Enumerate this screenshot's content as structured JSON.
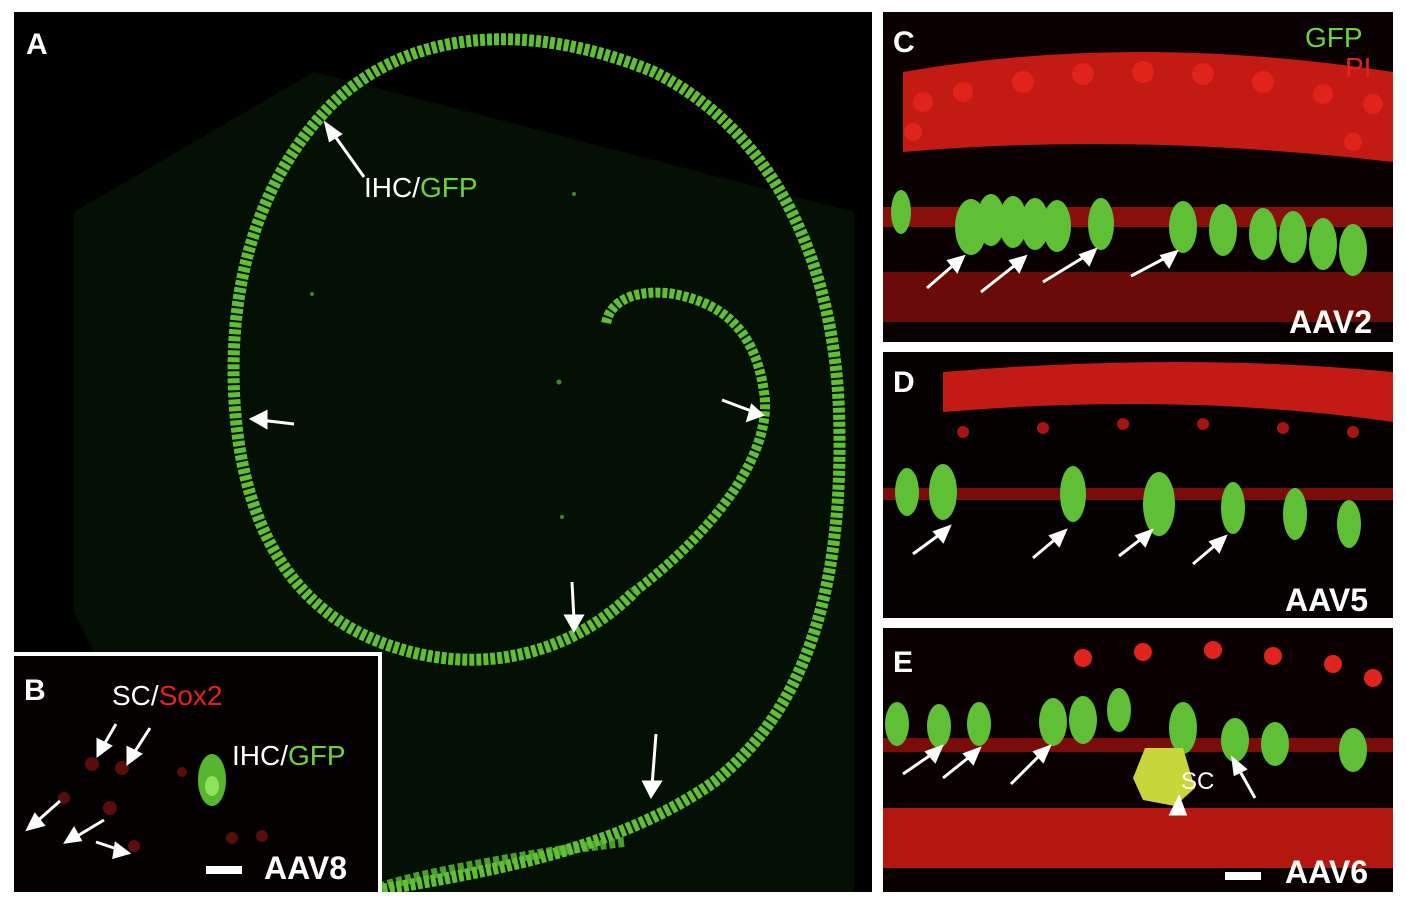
{
  "panels": {
    "a": {
      "label": "A",
      "annotation": {
        "part1": "IHC/",
        "part2": "GFP"
      }
    },
    "b": {
      "label": "B",
      "annotation_top": {
        "part1": "SC/",
        "part2": "Sox2"
      },
      "annotation_right": {
        "part1": "IHC/",
        "part2": "GFP"
      },
      "vector": "AAV8"
    },
    "c": {
      "label": "C",
      "legend_gfp": "GFP",
      "legend_pi": "PI",
      "vector": "AAV2"
    },
    "d": {
      "label": "D",
      "vector": "AAV5"
    },
    "e": {
      "label": "E",
      "sc_label": "SC",
      "vector": "AAV6"
    }
  },
  "colors": {
    "gfp": "#6fd23c",
    "pi": "#e0231b",
    "text": "#ffffff",
    "background": "#000000"
  }
}
